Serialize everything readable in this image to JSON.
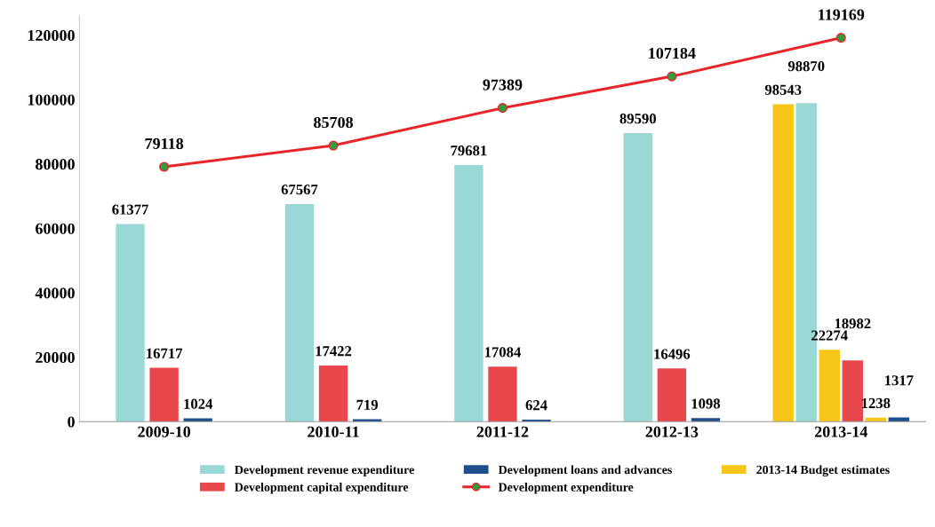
{
  "chart_data": {
    "type": "bar",
    "categories": [
      "2009-10",
      "2010-11",
      "2011-12",
      "2012-13",
      "2013-14"
    ],
    "series": [
      {
        "name": "2013-14 Budget estimates",
        "color": "#f5c518",
        "values": [
          null,
          null,
          null,
          null,
          98543
        ]
      },
      {
        "name": "Development revenue expenditure",
        "color": "#99d8d4",
        "values": [
          61377,
          67567,
          79681,
          89590,
          98870
        ]
      },
      {
        "color": "#f5c518",
        "values": [
          null,
          null,
          null,
          null,
          22274
        ]
      },
      {
        "name": "Development capital expenditure",
        "color": "#e8474c",
        "values": [
          16717,
          17422,
          17084,
          16496,
          18982
        ]
      },
      {
        "color": "#f5c518",
        "values": [
          null,
          null,
          null,
          null,
          1238
        ]
      },
      {
        "name": "Development loans and advances",
        "color": "#1f4e8c",
        "values": [
          1024,
          719,
          624,
          1098,
          1317
        ]
      },
      {
        "name": "Development expenditure",
        "type": "line",
        "color": "#e8262a",
        "marker": "circle",
        "values": [
          79118,
          85708,
          97389,
          107184,
          119169
        ]
      }
    ],
    "ylim": [
      0,
      126000
    ],
    "yticks": [
      0,
      20000,
      40000,
      60000,
      80000,
      100000,
      120000
    ],
    "data_labels": true,
    "grid": false,
    "legend": "bottom"
  }
}
